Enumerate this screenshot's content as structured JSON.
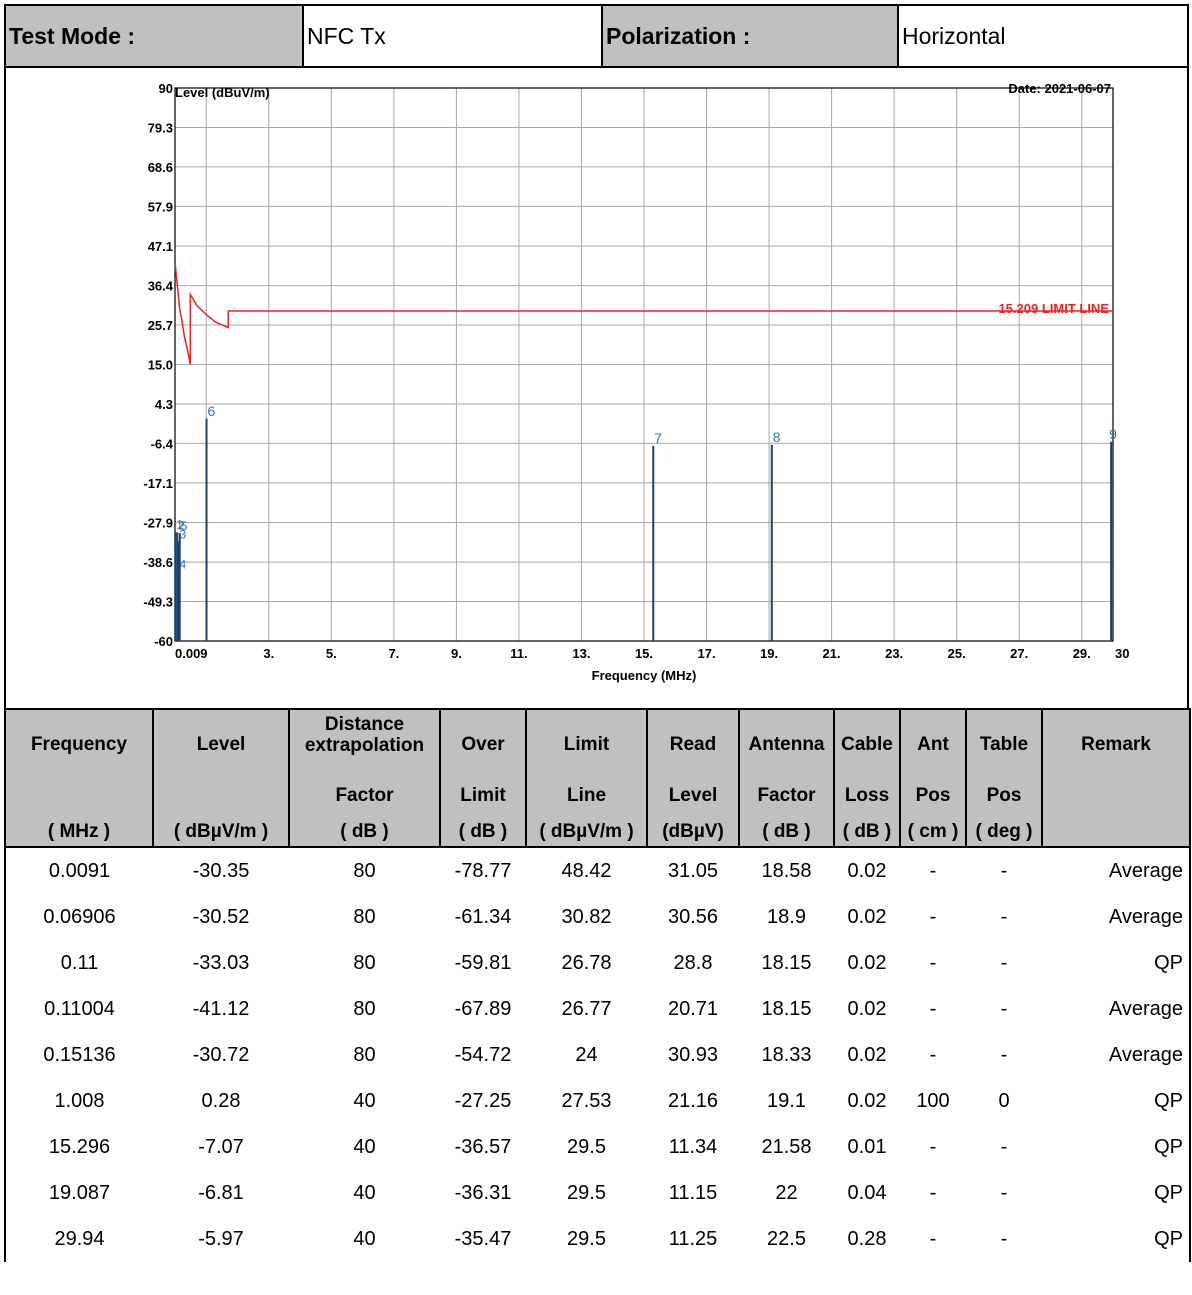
{
  "header": {
    "test_mode_label": "Test Mode :",
    "test_mode_value": "NFC Tx",
    "polarization_label": "Polarization :",
    "polarization_value": "Horizontal"
  },
  "chart_data": {
    "type": "line",
    "ylabel": "Level (dBuV/m)",
    "xlabel": "Frequency (MHz)",
    "date_text": "Date: 2021-06-07",
    "ylim": [
      -60,
      90
    ],
    "xlim": [
      0,
      30
    ],
    "y_ticks": [
      {
        "v": 90,
        "label": "90"
      },
      {
        "v": 79.3,
        "label": "79.3"
      },
      {
        "v": 68.6,
        "label": "68.6"
      },
      {
        "v": 57.9,
        "label": "57.9"
      },
      {
        "v": 47.1,
        "label": "47.1"
      },
      {
        "v": 36.4,
        "label": "36.4"
      },
      {
        "v": 25.7,
        "label": "25.7"
      },
      {
        "v": 15.0,
        "label": "15.0"
      },
      {
        "v": 4.3,
        "label": "4.3"
      },
      {
        "v": -6.4,
        "label": "-6.4"
      },
      {
        "v": -17.1,
        "label": "-17.1"
      },
      {
        "v": -27.9,
        "label": "-27.9"
      },
      {
        "v": -38.6,
        "label": "-38.6"
      },
      {
        "v": -49.3,
        "label": "-49.3"
      },
      {
        "v": -60,
        "label": "-60"
      }
    ],
    "x_ticks": [
      {
        "v": 0.009,
        "label": "0.009"
      },
      {
        "v": 3,
        "label": "3."
      },
      {
        "v": 5,
        "label": "5."
      },
      {
        "v": 7,
        "label": "7."
      },
      {
        "v": 9,
        "label": "9."
      },
      {
        "v": 11,
        "label": "11."
      },
      {
        "v": 13,
        "label": "13."
      },
      {
        "v": 15,
        "label": "15."
      },
      {
        "v": 17,
        "label": "17."
      },
      {
        "v": 19,
        "label": "19."
      },
      {
        "v": 21,
        "label": "21."
      },
      {
        "v": 23,
        "label": "23."
      },
      {
        "v": 25,
        "label": "25."
      },
      {
        "v": 27,
        "label": "27."
      },
      {
        "v": 29,
        "label": "29."
      },
      {
        "v": 30,
        "label": "30"
      }
    ],
    "grid": true,
    "limit_line": {
      "name": "15.209 LIMIT LINE",
      "color": "#ee2222",
      "points": [
        [
          0.009,
          42
        ],
        [
          0.08,
          36
        ],
        [
          0.15,
          30
        ],
        [
          0.22,
          27
        ],
        [
          0.3,
          22.5
        ],
        [
          0.4,
          19
        ],
        [
          0.49,
          15
        ],
        [
          0.49,
          34
        ],
        [
          0.7,
          31
        ],
        [
          1.0,
          28.5
        ],
        [
          1.3,
          26.5
        ],
        [
          1.7,
          25
        ],
        [
          1.705,
          29.5
        ],
        [
          30,
          29.5
        ]
      ]
    },
    "markers": [
      {
        "label": "1",
        "x": 0.0091,
        "y": -30.35
      },
      {
        "label": "2",
        "x": 0.06906,
        "y": -30.52
      },
      {
        "label": "3",
        "x": 0.11,
        "y": -33.03
      },
      {
        "label": "4",
        "x": 0.11004,
        "y": -41.12
      },
      {
        "label": "5",
        "x": 0.15136,
        "y": -30.72
      },
      {
        "label": "6",
        "x": 1.008,
        "y": 0.28
      },
      {
        "label": "7",
        "x": 15.296,
        "y": -7.07
      },
      {
        "label": "8",
        "x": 19.087,
        "y": -6.81
      },
      {
        "label": "9",
        "x": 29.94,
        "y": -5.97
      }
    ],
    "colors": {
      "marker": "#1f3f6f",
      "marker_label": "#3a6fb0",
      "grid": "#a8a8a8",
      "axis": "#000000"
    }
  },
  "table": {
    "columns": [
      {
        "l1": "Frequency",
        "l2": "",
        "l3": "( MHz )"
      },
      {
        "l1": "Level",
        "l2": "",
        "l3": "( dBµV/m )"
      },
      {
        "l1": "Distance extrapolation",
        "l2": "Factor",
        "l3": "( dB )"
      },
      {
        "l1": "Over",
        "l2": "Limit",
        "l3": "( dB )"
      },
      {
        "l1": "Limit",
        "l2": "Line",
        "l3": "( dBµV/m )"
      },
      {
        "l1": "Read",
        "l2": "Level",
        "l3": "(dBµV)"
      },
      {
        "l1": "Antenna",
        "l2": "Factor",
        "l3": "( dB )"
      },
      {
        "l1": "Cable",
        "l2": "Loss",
        "l3": "( dB )"
      },
      {
        "l1": "Ant",
        "l2": "Pos",
        "l3": "( cm )"
      },
      {
        "l1": "Table",
        "l2": "Pos",
        "l3": "( deg )"
      },
      {
        "l1": "Remark",
        "l2": "",
        "l3": ""
      }
    ],
    "rows": [
      [
        "0.0091",
        "-30.35",
        "80",
        "-78.77",
        "48.42",
        "31.05",
        "18.58",
        "0.02",
        "-",
        "-",
        "Average"
      ],
      [
        "0.06906",
        "-30.52",
        "80",
        "-61.34",
        "30.82",
        "30.56",
        "18.9",
        "0.02",
        "-",
        "-",
        "Average"
      ],
      [
        "0.11",
        "-33.03",
        "80",
        "-59.81",
        "26.78",
        "28.8",
        "18.15",
        "0.02",
        "-",
        "-",
        "QP"
      ],
      [
        "0.11004",
        "-41.12",
        "80",
        "-67.89",
        "26.77",
        "20.71",
        "18.15",
        "0.02",
        "-",
        "-",
        "Average"
      ],
      [
        "0.15136",
        "-30.72",
        "80",
        "-54.72",
        "24",
        "30.93",
        "18.33",
        "0.02",
        "-",
        "-",
        "Average"
      ],
      [
        "1.008",
        "0.28",
        "40",
        "-27.25",
        "27.53",
        "21.16",
        "19.1",
        "0.02",
        "100",
        "0",
        "QP"
      ],
      [
        "15.296",
        "-7.07",
        "40",
        "-36.57",
        "29.5",
        "11.34",
        "21.58",
        "0.01",
        "-",
        "-",
        "QP"
      ],
      [
        "19.087",
        "-6.81",
        "40",
        "-36.31",
        "29.5",
        "11.15",
        "22",
        "0.04",
        "-",
        "-",
        "QP"
      ],
      [
        "29.94",
        "-5.97",
        "40",
        "-35.47",
        "29.5",
        "11.25",
        "22.5",
        "0.28",
        "-",
        "-",
        "QP"
      ]
    ]
  }
}
